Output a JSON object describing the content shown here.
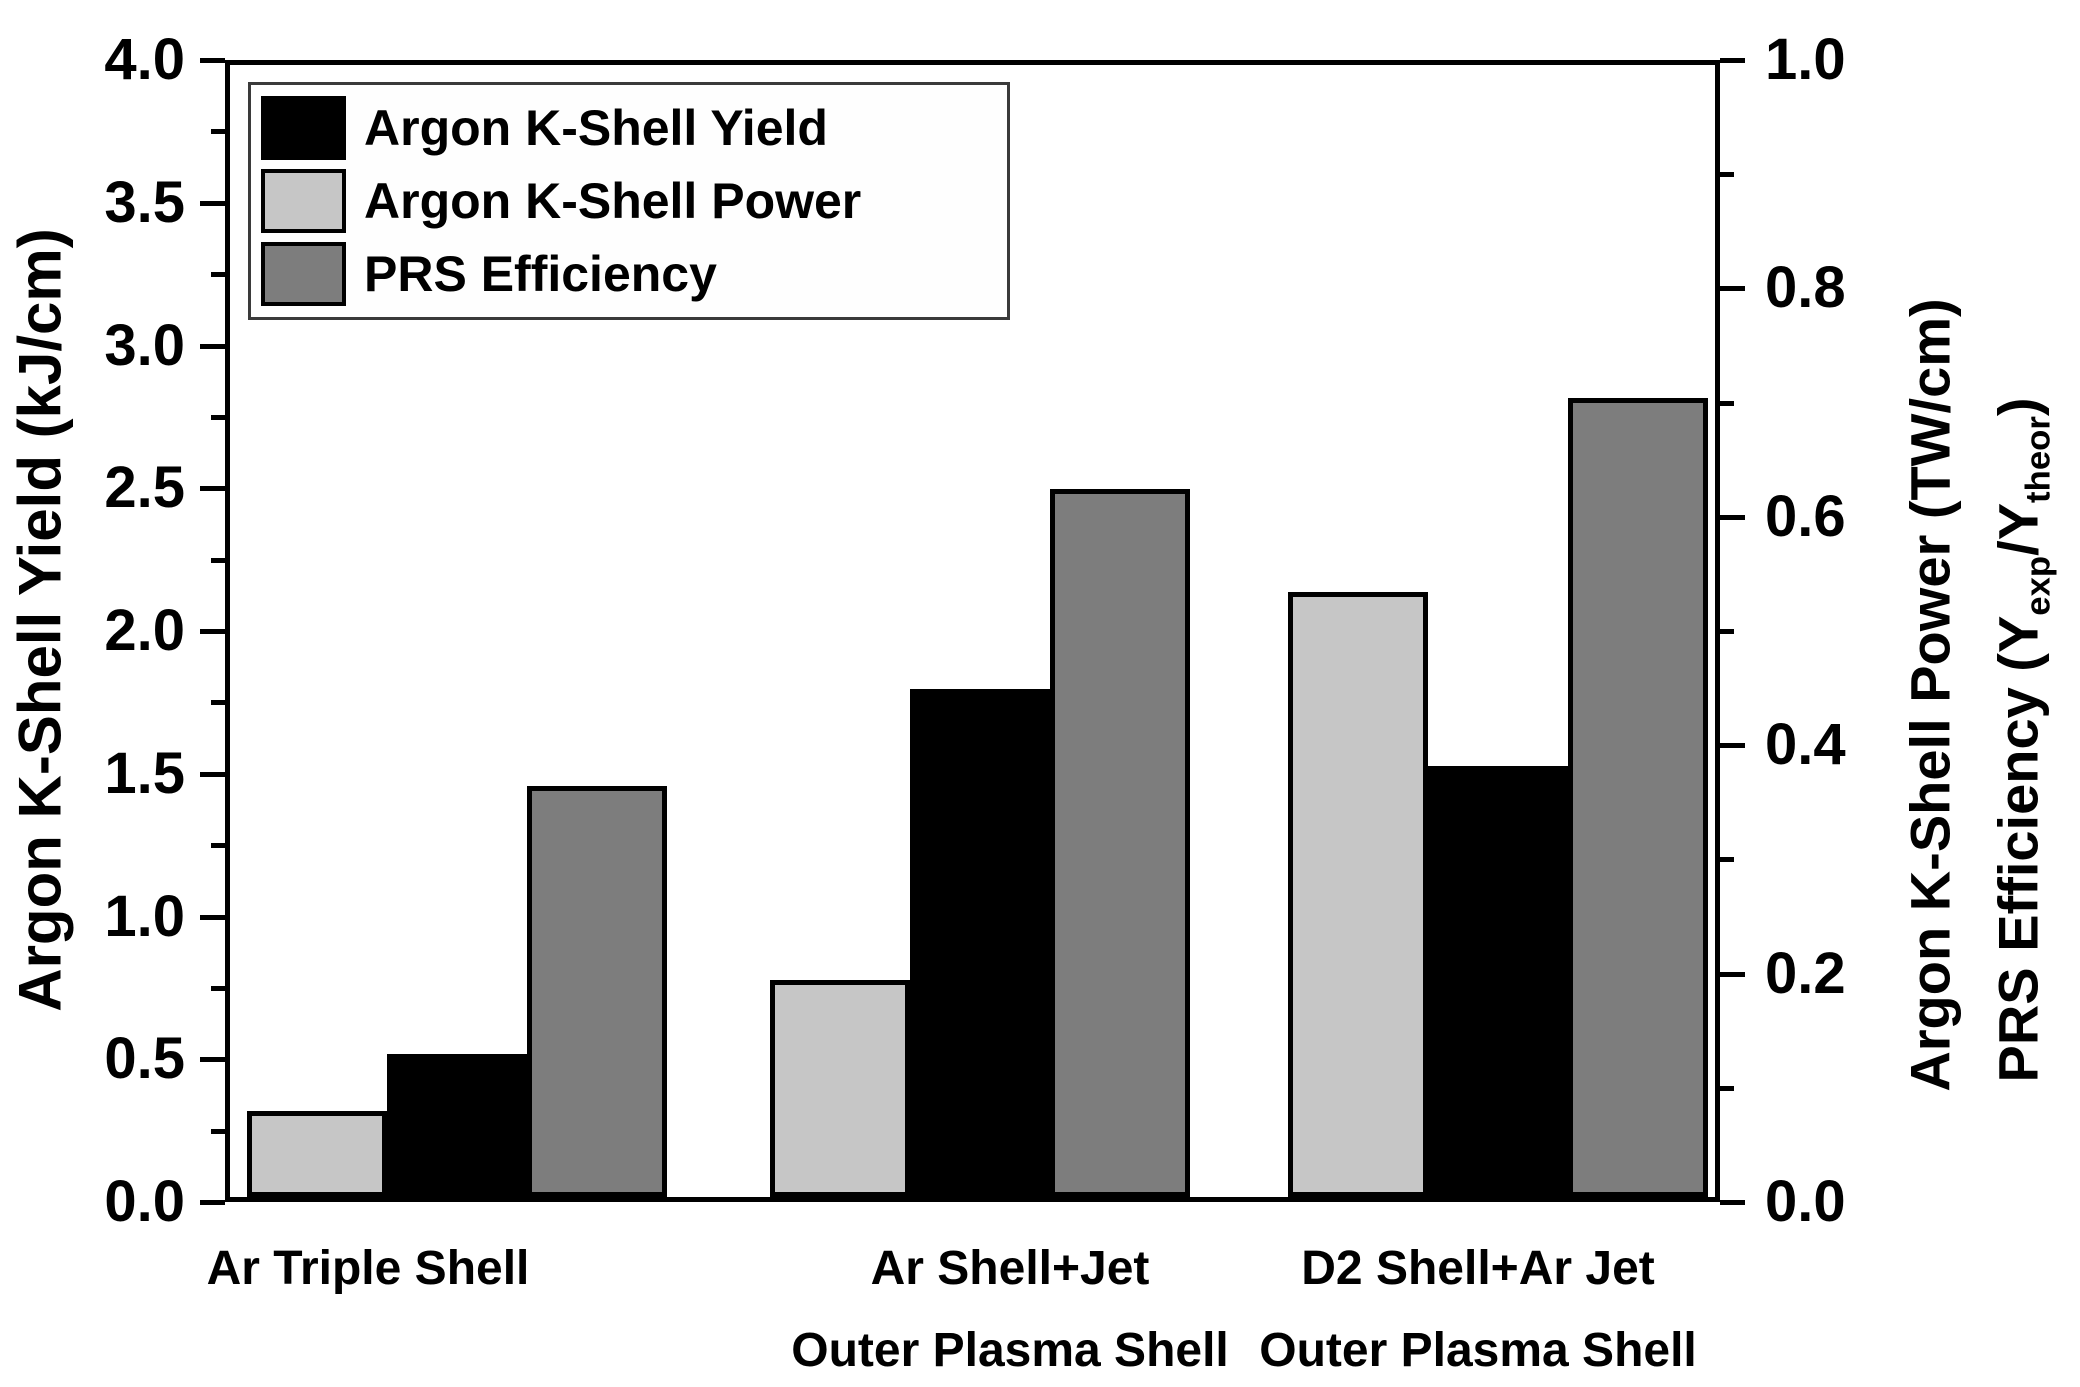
{
  "chart_data": {
    "type": "bar",
    "title": "",
    "categories": [
      [
        "Ar Triple Shell"
      ],
      [
        "Ar Shell+Jet",
        "Outer Plasma Shell"
      ],
      [
        "D2 Shell+Ar Jet",
        "Outer Plasma Shell"
      ]
    ],
    "series": [
      {
        "name": "Argon K-Shell Power",
        "axis": "right",
        "color": "#c6c6c6",
        "values": [
          0.075,
          0.19,
          0.53
        ]
      },
      {
        "name": "Argon K-Shell Yield",
        "axis": "left",
        "color": "#000000",
        "values": [
          0.5,
          1.78,
          1.51
        ]
      },
      {
        "name": "PRS Efficiency",
        "axis": "right",
        "color": "#7d7d7d",
        "values": [
          0.36,
          0.62,
          0.7
        ]
      }
    ],
    "left_axis": {
      "label": "Argon K-Shell Yield (kJ/cm)",
      "min": 0.0,
      "max": 4.0,
      "major_tick_labels": [
        "0.0",
        "0.5",
        "1.0",
        "1.5",
        "2.0",
        "2.5",
        "3.0",
        "3.5",
        "4.0"
      ],
      "major_step": 0.5,
      "minor_step": 0.25
    },
    "right_axis": {
      "titles": [
        {
          "segments": [
            {
              "t": "Argon K-Shell Power (TW/cm)"
            }
          ]
        },
        {
          "segments": [
            {
              "t": "PRS Efficiency (Y"
            },
            {
              "t": "exp",
              "sub": true
            },
            {
              "t": "/Y"
            },
            {
              "t": "theor",
              "sub": true
            },
            {
              "t": ")"
            }
          ]
        }
      ],
      "min": 0.0,
      "max": 1.0,
      "major_tick_labels": [
        "0.0",
        "0.2",
        "0.4",
        "0.6",
        "0.8",
        "1.0"
      ],
      "major_step": 0.2,
      "minor_step": 0.1
    },
    "legend": {
      "position": "top-left",
      "entries": [
        {
          "label": "Argon K-Shell Yield",
          "color": "#000000"
        },
        {
          "label": "Argon K-Shell Power",
          "color": "#c6c6c6"
        },
        {
          "label": "PRS Efficiency",
          "color": "#7d7d7d"
        }
      ]
    },
    "grid": false
  }
}
